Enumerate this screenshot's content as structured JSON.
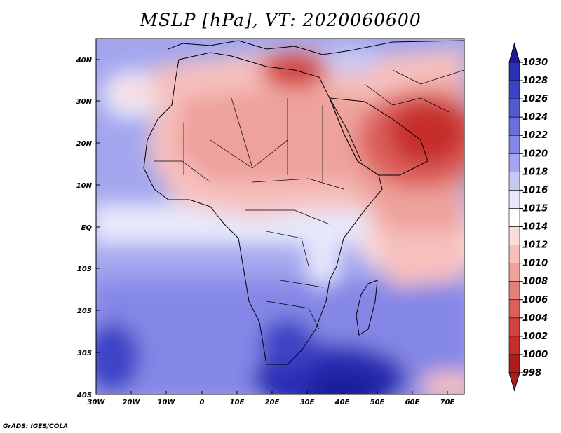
{
  "title": "MSLP [hPa], VT: 2020060600",
  "credit": "GrADS: IGES/COLA",
  "lat_labels": [
    "40N",
    "30N",
    "20N",
    "10N",
    "EQ",
    "10S",
    "20S",
    "30S",
    "40S"
  ],
  "lon_labels": [
    "30W",
    "20W",
    "10W",
    "0",
    "10E",
    "20E",
    "30E",
    "40E",
    "50E",
    "60E",
    "70E"
  ],
  "colorbar": {
    "levels": [
      "1030",
      "1028",
      "1026",
      "1024",
      "1022",
      "1020",
      "1018",
      "1016",
      "1015",
      "1014",
      "1012",
      "1010",
      "1008",
      "1006",
      "1004",
      "1002",
      "1000",
      "998"
    ],
    "colors": [
      "#1a1a9c",
      "#2b2fb4",
      "#3c44c6",
      "#5259d2",
      "#6b6fdc",
      "#8587e6",
      "#a3a6ee",
      "#c7c9f5",
      "#e7e8fb",
      "#ffffff",
      "#fbdcdc",
      "#f6c0bd",
      "#eea29c",
      "#e5817b",
      "#dc5f5a",
      "#d2433f",
      "#c62d2a",
      "#ad1d1d"
    ]
  },
  "map": {
    "region": "Africa",
    "variable": "Mean sea level pressure",
    "units": "hPa",
    "lon_range": [
      -30,
      76
    ],
    "lat_range": [
      -40,
      45
    ]
  }
}
